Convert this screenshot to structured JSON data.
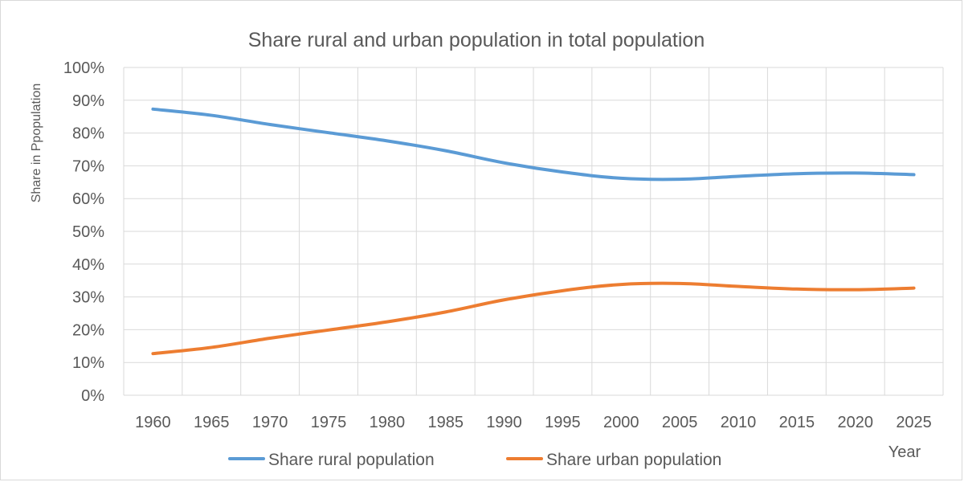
{
  "chart_data": {
    "type": "line",
    "title": "Share rural and urban population in total population",
    "xlabel": "Year",
    "ylabel": "Share in Ppopulation",
    "categories": [
      "1960",
      "1965",
      "1970",
      "1975",
      "1980",
      "1985",
      "1990",
      "1995",
      "2000",
      "2005",
      "2010",
      "2015",
      "2020",
      "2025"
    ],
    "y_ticks": [
      "0%",
      "10%",
      "20%",
      "30%",
      "40%",
      "50%",
      "60%",
      "70%",
      "80%",
      "90%",
      "100%"
    ],
    "ylim": [
      0,
      100
    ],
    "grid": true,
    "legend_position": "bottom",
    "series": [
      {
        "name": "Share rural population",
        "color": "#5b9bd5",
        "values": [
          87.3,
          85.4,
          82.6,
          80.1,
          77.6,
          74.6,
          70.9,
          68.1,
          66.2,
          65.9,
          66.8,
          67.6,
          67.8,
          67.3
        ]
      },
      {
        "name": "Share urban population",
        "color": "#ed7d31",
        "values": [
          12.7,
          14.6,
          17.4,
          19.9,
          22.4,
          25.4,
          29.1,
          31.9,
          33.8,
          34.1,
          33.2,
          32.4,
          32.2,
          32.7
        ]
      }
    ]
  }
}
